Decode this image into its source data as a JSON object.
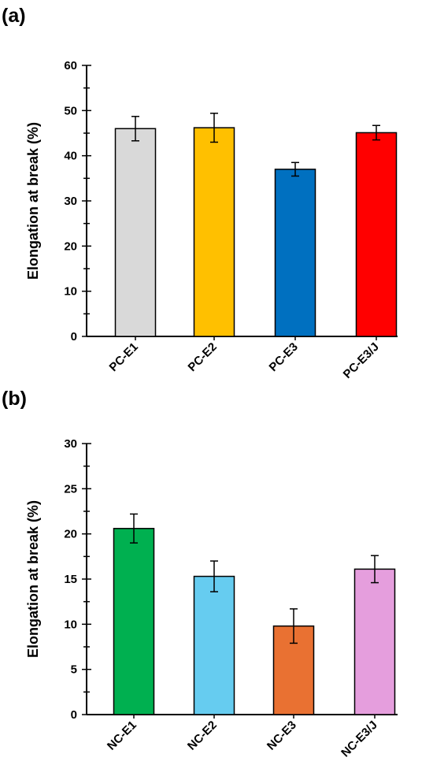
{
  "chart_data": [
    {
      "type": "bar",
      "panel_label": "(a)",
      "ylabel": "Elongation at  break (%)",
      "xlabel": "",
      "ylim": [
        0,
        60
      ],
      "yticks": [
        0,
        10,
        20,
        30,
        40,
        50,
        60
      ],
      "grid": false,
      "categories": [
        "PC-E1",
        "PC-E2",
        "PC-E3",
        "PC-E3/J"
      ],
      "values": [
        46,
        46.2,
        37,
        45.1
      ],
      "errors": [
        2.7,
        3.2,
        1.5,
        1.6
      ],
      "colors": [
        "#d9d9d9",
        "#ffc000",
        "#0070c0",
        "#ff0000"
      ]
    },
    {
      "type": "bar",
      "panel_label": "(b)",
      "ylabel": "Elongation at  break (%)",
      "xlabel": "",
      "ylim": [
        0,
        30
      ],
      "yticks": [
        0,
        5,
        10,
        15,
        20,
        25,
        30
      ],
      "grid": false,
      "categories": [
        "NC-E1",
        "NC-E2",
        "NC-E3",
        "NC-E3/J"
      ],
      "values": [
        20.6,
        15.3,
        9.8,
        16.1
      ],
      "errors": [
        1.6,
        1.7,
        1.9,
        1.5
      ],
      "colors": [
        "#00b050",
        "#66ccf0",
        "#e97132",
        "#e59edd"
      ]
    }
  ]
}
